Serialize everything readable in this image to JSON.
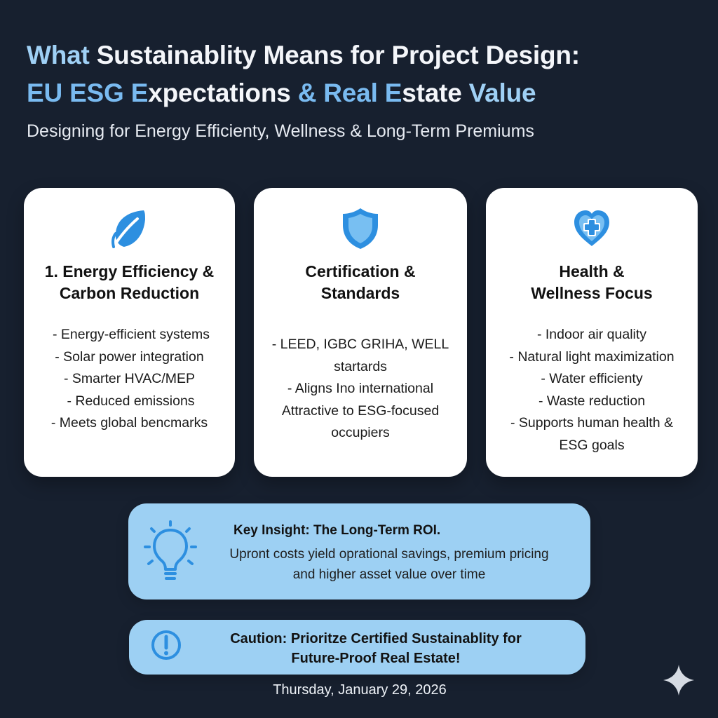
{
  "header": {
    "title_line1_prefix": "What",
    "title_line1_rest": " Sustainablity Means for Project Design:",
    "title_line2_a": "EU ESG E",
    "title_line2_b": "xpectations ",
    "title_line2_c": "& Real E",
    "title_line2_d": "state ",
    "title_line2_e": "Value",
    "subtitle": "Designing for Energy Efficienty, Wellness & Long-Term Premiums"
  },
  "cards": [
    {
      "icon": "leaf-icon",
      "title_line1": "1. Energy Efficiency &",
      "title_line2": "Carbon Reduction",
      "items": [
        "- Energy-efficient systems",
        "- Solar power integration",
        "- Smarter HVAC/MEP",
        "- Reduced emissions",
        "- Meets global bencmarks"
      ]
    },
    {
      "icon": "shield-icon",
      "title_line1": "Certification &",
      "title_line2": "Standards",
      "items": [
        "- LEED, IGBC GRIHA, WELL",
        "startards",
        "- Aligns Ino international",
        "Attractive to ESG-focused",
        "occupiers"
      ]
    },
    {
      "icon": "heart-plus-icon",
      "title_line1": "Health &",
      "title_line2": "Wellness Focus",
      "items": [
        "- Indoor air quality",
        "- Natural light maximization",
        "- Water efficienty",
        "- Waste reduction",
        "- Supports human health &",
        "ESG goals"
      ]
    }
  ],
  "insight": {
    "icon": "lightbulb-icon",
    "title": "Key Insight: The Long-Term ROI.",
    "text_line1": "Upront costs yield oprational savings, premium pricing",
    "text_line2": "and higher asset value over time"
  },
  "caution": {
    "icon": "exclamation-circle-icon",
    "line1": "Caution: Prioritze Certified Sustainablity for",
    "line2": "Future-Proof Real Estate!"
  },
  "footer": {
    "date": "Thursday, January 29, 2026",
    "corner_icon": "sparkle-icon"
  },
  "colors": {
    "background": "#17202f",
    "card": "#ffffff",
    "accent_light_blue": "#9fd0f5",
    "accent_blue": "#79baf0",
    "callout_blue": "#9dd0f3",
    "icon_blue": "#2d8fe0",
    "text_dark": "#111111",
    "text_light": "#f4f6fa"
  }
}
